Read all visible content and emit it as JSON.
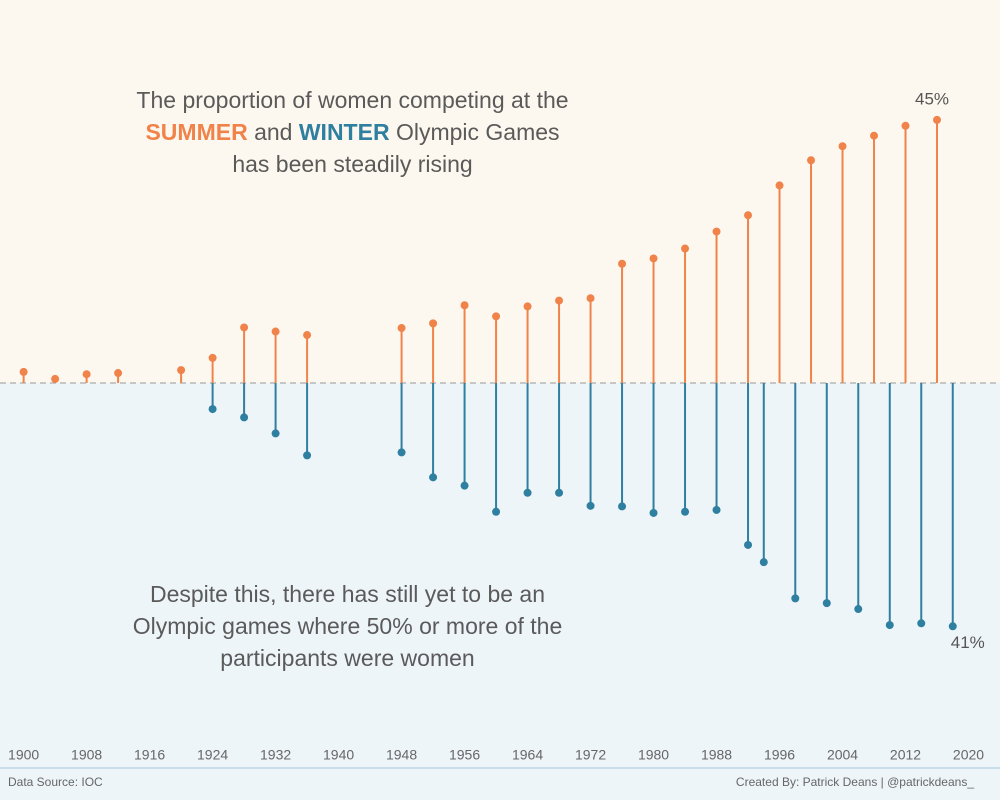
{
  "chart_data": {
    "type": "lollipop",
    "title": [
      "The proportion of women competing at the",
      "and",
      "Olympic Games has been steadily rising"
    ],
    "annotation": "Despite this, there has still yet to be an Olympic games where 50% or more of the participants were women",
    "source": "Data Source: IOC",
    "credit": "Created By: Patrick Deans | @patrickdeans_",
    "xlim": [
      1897,
      2024
    ],
    "xticks": [
      1900,
      1908,
      1916,
      1924,
      1932,
      1940,
      1948,
      1956,
      1964,
      1972,
      1980,
      1988,
      1996,
      2004,
      2012,
      2020
    ],
    "ylim": [
      0,
      65
    ],
    "y2lim": [
      0,
      60
    ],
    "y2_reversed": true,
    "grid": false,
    "series": [
      {
        "name": "SUMMER",
        "color": "#f0834a",
        "x": [
          1900,
          1904,
          1908,
          1912,
          1920,
          1924,
          1928,
          1932,
          1936,
          1948,
          1952,
          1956,
          1960,
          1964,
          1968,
          1972,
          1976,
          1980,
          1984,
          1988,
          1992,
          1996,
          2000,
          2004,
          2008,
          2012,
          2016
        ],
        "values": [
          1.9,
          0.7,
          1.5,
          1.7,
          2.2,
          4.3,
          9.5,
          8.8,
          8.2,
          9.4,
          10.2,
          13.3,
          11.4,
          13.1,
          14.1,
          14.5,
          20.4,
          21.3,
          23.0,
          25.9,
          28.7,
          33.8,
          38.1,
          40.5,
          42.3,
          44.0,
          45
        ],
        "value_labels": [
          null,
          null,
          null,
          null,
          null,
          null,
          null,
          null,
          null,
          null,
          null,
          null,
          null,
          null,
          null,
          null,
          null,
          null,
          null,
          null,
          null,
          null,
          null,
          null,
          null,
          null,
          "45%"
        ]
      },
      {
        "name": "WINTER",
        "color": "#2e7fa0",
        "axis": "y2",
        "x": [
          1924,
          1928,
          1932,
          1936,
          1948,
          1952,
          1956,
          1960,
          1964,
          1968,
          1972,
          1976,
          1980,
          1984,
          1988,
          1992,
          1994,
          1998,
          2002,
          2006,
          2010,
          2014,
          2018
        ],
        "values": [
          4.4,
          5.8,
          8.5,
          12.2,
          11.7,
          15.9,
          17.3,
          21.7,
          18.5,
          18.5,
          20.7,
          20.8,
          21.9,
          21.7,
          21.4,
          27.3,
          30.2,
          36.3,
          37.1,
          38.1,
          40.8,
          40.5,
          41
        ],
        "value_labels": [
          null,
          null,
          null,
          null,
          null,
          null,
          null,
          null,
          null,
          null,
          null,
          null,
          null,
          null,
          null,
          null,
          null,
          null,
          null,
          null,
          null,
          null,
          "41%"
        ]
      }
    ]
  }
}
